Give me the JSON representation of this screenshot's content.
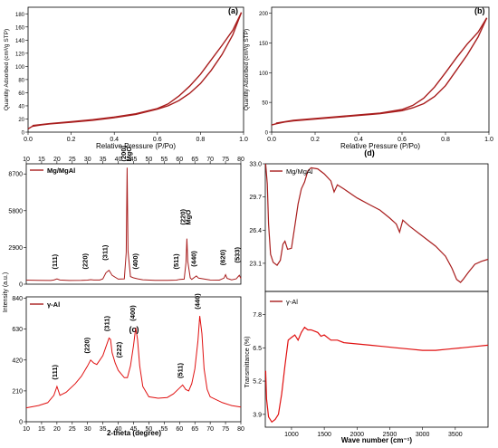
{
  "series_color": "#a81d1d",
  "series_color_bright": "#e01010",
  "chart_data": [
    {
      "id": "a",
      "type": "line",
      "panel_label": "(a)",
      "xlabel": "Relative Pressure (P/Po)",
      "ylabel": "Quantity Adsorbed (cm³/g STP)",
      "xlim": [
        0,
        1
      ],
      "ylim": [
        0,
        190
      ],
      "xticks": [
        "0.0",
        "0.2",
        "0.4",
        "0.6",
        "0.8",
        "1.0"
      ],
      "yticks": [
        "0",
        "20",
        "40",
        "60",
        "80",
        "100",
        "120",
        "140",
        "160",
        "180"
      ],
      "series": [
        {
          "points": [
            [
              0.0,
              5
            ],
            [
              0.02,
              9
            ],
            [
              0.06,
              11
            ],
            [
              0.1,
              12.5
            ],
            [
              0.2,
              15
            ],
            [
              0.3,
              18
            ],
            [
              0.4,
              22
            ],
            [
              0.5,
              27
            ],
            [
              0.6,
              35
            ],
            [
              0.65,
              40
            ],
            [
              0.7,
              48
            ],
            [
              0.75,
              59
            ],
            [
              0.8,
              74
            ],
            [
              0.85,
              94
            ],
            [
              0.9,
              118
            ],
            [
              0.95,
              148
            ],
            [
              0.99,
              182
            ]
          ]
        },
        {
          "points": [
            [
              0.99,
              182
            ],
            [
              0.95,
              155
            ],
            [
              0.9,
              132
            ],
            [
              0.85,
              110
            ],
            [
              0.8,
              88
            ],
            [
              0.75,
              70
            ],
            [
              0.7,
              55
            ],
            [
              0.65,
              43
            ],
            [
              0.6,
              36
            ],
            [
              0.5,
              28
            ],
            [
              0.4,
              23
            ],
            [
              0.3,
              19
            ],
            [
              0.2,
              16
            ],
            [
              0.1,
              13
            ],
            [
              0.02,
              10
            ]
          ]
        }
      ]
    },
    {
      "id": "b",
      "type": "line",
      "panel_label": "(b)",
      "xlabel": "Relative Pressure (P/Po)",
      "ylabel": "Quantity Adsorbed (cm³/g STP)",
      "xlim": [
        0,
        1
      ],
      "ylim": [
        0,
        210
      ],
      "xticks": [
        "0.0",
        "0.2",
        "0.4",
        "0.6",
        "0.8",
        "1.0"
      ],
      "yticks": [
        "0",
        "50",
        "100",
        "150",
        "200"
      ],
      "series": [
        {
          "points": [
            [
              0.0,
              12
            ],
            [
              0.02,
              14
            ],
            [
              0.06,
              17
            ],
            [
              0.1,
              19
            ],
            [
              0.2,
              22
            ],
            [
              0.3,
              25
            ],
            [
              0.4,
              28
            ],
            [
              0.5,
              31
            ],
            [
              0.6,
              36
            ],
            [
              0.65,
              41
            ],
            [
              0.7,
              48
            ],
            [
              0.75,
              60
            ],
            [
              0.8,
              78
            ],
            [
              0.85,
              104
            ],
            [
              0.9,
              130
            ],
            [
              0.95,
              160
            ],
            [
              0.99,
              192
            ]
          ]
        },
        {
          "points": [
            [
              0.99,
              192
            ],
            [
              0.95,
              168
            ],
            [
              0.9,
              148
            ],
            [
              0.85,
              125
            ],
            [
              0.8,
              100
            ],
            [
              0.75,
              76
            ],
            [
              0.7,
              57
            ],
            [
              0.65,
              45
            ],
            [
              0.6,
              38
            ],
            [
              0.5,
              32
            ],
            [
              0.4,
              29
            ],
            [
              0.3,
              26
            ],
            [
              0.2,
              23
            ],
            [
              0.1,
              20
            ],
            [
              0.02,
              15
            ]
          ]
        }
      ]
    },
    {
      "id": "c-top",
      "type": "line",
      "panel_label": "(c)",
      "xlim": [
        10,
        80
      ],
      "ylim": [
        0,
        9500
      ],
      "xticks": [
        "10",
        "15",
        "20",
        "25",
        "30",
        "35",
        "40",
        "45",
        "50",
        "55",
        "60",
        "65",
        "70",
        "75",
        "80"
      ],
      "yticks": [
        "0",
        "2900",
        "5800",
        "8700"
      ],
      "legend": "Mg/MgAl",
      "series": [
        {
          "points": [
            [
              10,
              320
            ],
            [
              14,
              300
            ],
            [
              18,
              290
            ],
            [
              19,
              330
            ],
            [
              20,
              420
            ],
            [
              21,
              330
            ],
            [
              24,
              290
            ],
            [
              28,
              300
            ],
            [
              30,
              320
            ],
            [
              31,
              360
            ],
            [
              32,
              330
            ],
            [
              34,
              330
            ],
            [
              35,
              420
            ],
            [
              36,
              900
            ],
            [
              37,
              1100
            ],
            [
              38,
              700
            ],
            [
              40,
              400
            ],
            [
              42,
              420
            ],
            [
              42.6,
              2500
            ],
            [
              42.9,
              9200
            ],
            [
              43.2,
              2600
            ],
            [
              44,
              600
            ],
            [
              45,
              500
            ],
            [
              46.4,
              420
            ],
            [
              48,
              350
            ],
            [
              52,
              300
            ],
            [
              56,
              300
            ],
            [
              59,
              320
            ],
            [
              60,
              380
            ],
            [
              61.5,
              400
            ],
            [
              62.1,
              1700
            ],
            [
              62.4,
              3600
            ],
            [
              62.7,
              1800
            ],
            [
              63.5,
              500
            ],
            [
              64,
              380
            ],
            [
              65.5,
              650
            ],
            [
              66.2,
              480
            ],
            [
              70,
              330
            ],
            [
              73,
              320
            ],
            [
              74.5,
              480
            ],
            [
              75,
              750
            ],
            [
              75.5,
              460
            ],
            [
              77,
              340
            ],
            [
              78.5,
              420
            ],
            [
              79.5,
              700
            ],
            [
              80,
              450
            ]
          ]
        }
      ],
      "annotations": [
        "(111)",
        "(220)",
        "(311)",
        "(200)",
        "MgO",
        "(400)",
        "(511)",
        "(220)",
        "MgO",
        "(440)",
        "(620)",
        "(533)"
      ]
    },
    {
      "id": "c-bottom",
      "type": "line",
      "xlabel": "2-theta (degree)",
      "ylabel": "Intensity (a.u.)",
      "xlim": [
        10,
        80
      ],
      "ylim": [
        0,
        850
      ],
      "xticks": [
        "10",
        "15",
        "20",
        "25",
        "30",
        "35",
        "40",
        "45",
        "50",
        "55",
        "60",
        "65",
        "70",
        "75",
        "80"
      ],
      "yticks": [
        "0",
        "210",
        "420",
        "630",
        "840"
      ],
      "legend": "γ-Al",
      "series": [
        {
          "points": [
            [
              10,
              95
            ],
            [
              14,
              110
            ],
            [
              17,
              130
            ],
            [
              19,
              180
            ],
            [
              20,
              240
            ],
            [
              21,
              180
            ],
            [
              23,
              200
            ],
            [
              26,
              260
            ],
            [
              28,
              310
            ],
            [
              30,
              380
            ],
            [
              31,
              420
            ],
            [
              32,
              400
            ],
            [
              33,
              390
            ],
            [
              34,
              420
            ],
            [
              35,
              450
            ],
            [
              36,
              510
            ],
            [
              37,
              570
            ],
            [
              37.5,
              560
            ],
            [
              38,
              470
            ],
            [
              39,
              400
            ],
            [
              40,
              350
            ],
            [
              42,
              300
            ],
            [
              43,
              300
            ],
            [
              44,
              380
            ],
            [
              45,
              520
            ],
            [
              45.7,
              640
            ],
            [
              46.3,
              560
            ],
            [
              47,
              380
            ],
            [
              48,
              240
            ],
            [
              50,
              170
            ],
            [
              53,
              160
            ],
            [
              56,
              165
            ],
            [
              58,
              190
            ],
            [
              60,
              230
            ],
            [
              61,
              250
            ],
            [
              62,
              220
            ],
            [
              63,
              210
            ],
            [
              64,
              260
            ],
            [
              65,
              360
            ],
            [
              66,
              550
            ],
            [
              66.6,
              720
            ],
            [
              67.3,
              600
            ],
            [
              68,
              360
            ],
            [
              69,
              220
            ],
            [
              70,
              170
            ],
            [
              74,
              130
            ],
            [
              77,
              110
            ],
            [
              80,
              100
            ]
          ]
        }
      ]
    },
    {
      "id": "d-top",
      "type": "line",
      "panel_label": "(d)",
      "xlim": [
        600,
        4000
      ],
      "ylim": [
        20.3,
        33
      ],
      "yticks": [
        "23.1",
        "26.4",
        "29.7",
        "33.0"
      ],
      "legend": "Mg/MgAl",
      "series": [
        {
          "points": [
            [
              605,
              33
            ],
            [
              630,
              31
            ],
            [
              650,
              27
            ],
            [
              680,
              24
            ],
            [
              720,
              23.2
            ],
            [
              780,
              22.9
            ],
            [
              830,
              23.4
            ],
            [
              870,
              25
            ],
            [
              900,
              25.3
            ],
            [
              940,
              24.5
            ],
            [
              1000,
              24.6
            ],
            [
              1050,
              26.8
            ],
            [
              1100,
              29
            ],
            [
              1150,
              30.5
            ],
            [
              1200,
              31.2
            ],
            [
              1250,
              32.3
            ],
            [
              1300,
              32.6
            ],
            [
              1400,
              32.5
            ],
            [
              1500,
              32
            ],
            [
              1600,
              31.3
            ],
            [
              1650,
              30.2
            ],
            [
              1700,
              30.9
            ],
            [
              1800,
              30.5
            ],
            [
              2000,
              29.6
            ],
            [
              2200,
              28.9
            ],
            [
              2350,
              28.4
            ],
            [
              2500,
              27.6
            ],
            [
              2600,
              27
            ],
            [
              2650,
              26.2
            ],
            [
              2700,
              27.4
            ],
            [
              2800,
              26.8
            ],
            [
              3000,
              25.8
            ],
            [
              3200,
              24.8
            ],
            [
              3350,
              23.8
            ],
            [
              3450,
              22.6
            ],
            [
              3520,
              21.5
            ],
            [
              3580,
              21.2
            ],
            [
              3620,
              21.5
            ],
            [
              3700,
              22.2
            ],
            [
              3800,
              23
            ],
            [
              3900,
              23.3
            ],
            [
              4000,
              23.5
            ]
          ]
        }
      ]
    },
    {
      "id": "d-bottom",
      "type": "line",
      "xlabel": "Wave number (cm⁻¹)",
      "ylabel": "Transmittance (%)",
      "xlim": [
        600,
        4000
      ],
      "ylim": [
        3.4,
        8.7
      ],
      "xticks": [
        "1000",
        "1500",
        "2000",
        "2500",
        "3000",
        "3500"
      ],
      "yticks": [
        "3.9",
        "5.2",
        "6.5",
        "7.8"
      ],
      "legend": "γ-Al",
      "series": [
        {
          "points": [
            [
              605,
              5.6
            ],
            [
              620,
              4.5
            ],
            [
              650,
              3.8
            ],
            [
              700,
              3.6
            ],
            [
              750,
              3.7
            ],
            [
              800,
              3.9
            ],
            [
              850,
              4.7
            ],
            [
              900,
              5.8
            ],
            [
              950,
              6.8
            ],
            [
              1000,
              6.9
            ],
            [
              1050,
              7.0
            ],
            [
              1100,
              6.8
            ],
            [
              1150,
              7.1
            ],
            [
              1200,
              7.3
            ],
            [
              1250,
              7.2
            ],
            [
              1300,
              7.2
            ],
            [
              1400,
              7.1
            ],
            [
              1450,
              6.95
            ],
            [
              1500,
              7.0
            ],
            [
              1600,
              6.8
            ],
            [
              1700,
              6.8
            ],
            [
              1800,
              6.7
            ],
            [
              2000,
              6.65
            ],
            [
              2200,
              6.6
            ],
            [
              2400,
              6.55
            ],
            [
              2600,
              6.5
            ],
            [
              2800,
              6.45
            ],
            [
              3000,
              6.4
            ],
            [
              3200,
              6.4
            ],
            [
              3400,
              6.45
            ],
            [
              3600,
              6.5
            ],
            [
              3800,
              6.55
            ],
            [
              4000,
              6.6
            ]
          ]
        }
      ]
    }
  ]
}
